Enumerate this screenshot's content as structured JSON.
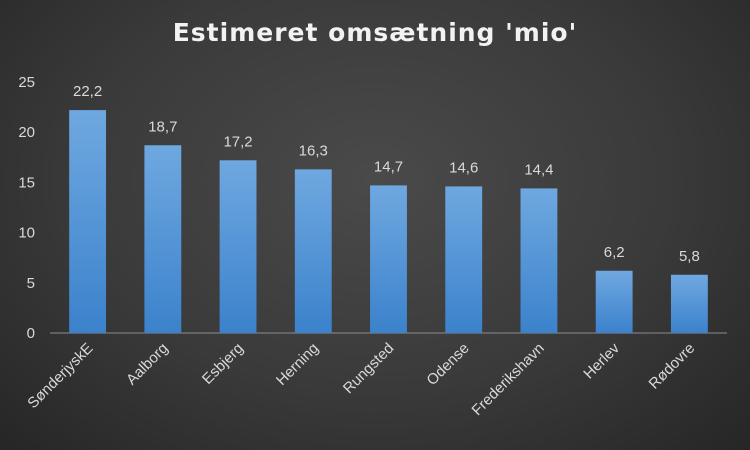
{
  "chart_data": {
    "type": "bar",
    "title": "Estimeret omsætning 'mio'",
    "xlabel": "",
    "ylabel": "",
    "categories": [
      "SønderjyskE",
      "Aalborg",
      "Esbjerg",
      "Herning",
      "Rungsted",
      "Odense",
      "Frederikshavn",
      "Herlev",
      "Rødovre"
    ],
    "values": [
      22.2,
      18.7,
      17.2,
      16.3,
      14.7,
      14.6,
      14.4,
      6.2,
      5.8
    ],
    "data_labels": [
      "22,2",
      "18,7",
      "17,2",
      "16,3",
      "14,7",
      "14,6",
      "14,4",
      "6,2",
      "5,8"
    ],
    "ylim": [
      0,
      25
    ],
    "yticks": [
      0,
      5,
      10,
      15,
      20,
      25
    ],
    "grid": false,
    "legend": "none",
    "bar_color_top": "#6fa8e0",
    "bar_color_bottom": "#3b82cc",
    "background_color": "#3a3a3a"
  }
}
